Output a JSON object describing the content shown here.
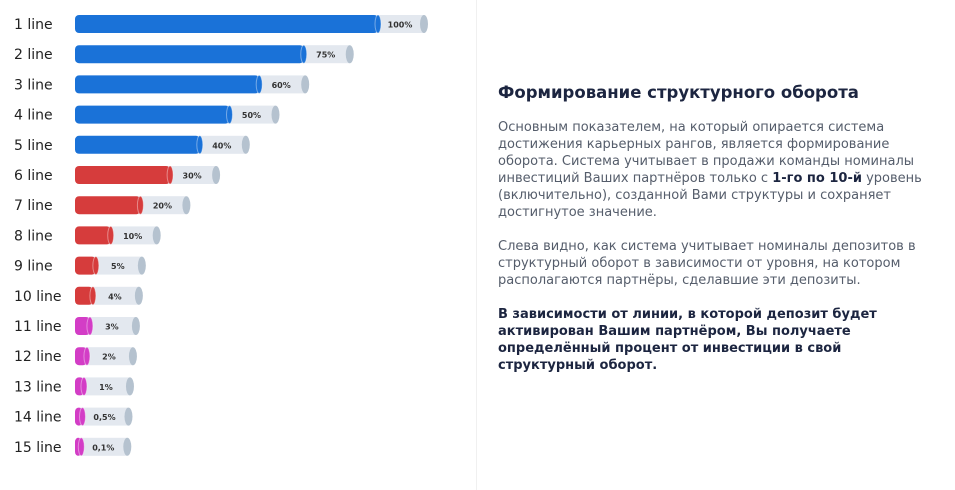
{
  "chart_data": {
    "type": "hbar",
    "categories": [
      "1 line",
      "2 line",
      "3 line",
      "4 line",
      "5 line",
      "6 line",
      "7 line",
      "8 line",
      "9 line",
      "10 line",
      "11 line",
      "12 line",
      "13 line",
      "14 line",
      "15 line"
    ],
    "values": [
      100,
      75,
      60,
      50,
      40,
      30,
      20,
      10,
      5,
      4,
      3,
      2,
      1,
      0.5,
      0.1
    ],
    "value_labels": [
      "100%",
      "75%",
      "60%",
      "50%",
      "40%",
      "30%",
      "20%",
      "10%",
      "5%",
      "4%",
      "3%",
      "2%",
      "1%",
      "0,5%",
      "0,1%"
    ],
    "colors": [
      "#1a72d8",
      "#1a72d8",
      "#1a72d8",
      "#1a72d8",
      "#1a72d8",
      "#d63c3c",
      "#d63c3c",
      "#d63c3c",
      "#d63c3c",
      "#d63c3c",
      "#d33dc6",
      "#d33dc6",
      "#d33dc6",
      "#d33dc6",
      "#d33dc6"
    ]
  },
  "text": {
    "title": "Формирование структурного оборота",
    "paragraph1": [
      "Основным показателем, на который опирается система достижения карьерных рангов, является формирование оборота. Система учитывает в продажи команды номиналы инвестиций Ваших партнёров только с ",
      "1-го по 10-й",
      " уровень (включительно),  созданной Вами структуры и сохраняет достигнутое значение."
    ],
    "paragraph2": "Слева видно, как система учитывает номиналы депозитов в структурный оборот в зависимости от уровня, на котором располагаются партнёры, сделавшие эти депозиты.",
    "paragraph3": "В зависимости от линии, в которой депозит будет активирован Вашим партнёром, Вы получаете определённый процент от инвестиции в свой структурный оборот."
  }
}
